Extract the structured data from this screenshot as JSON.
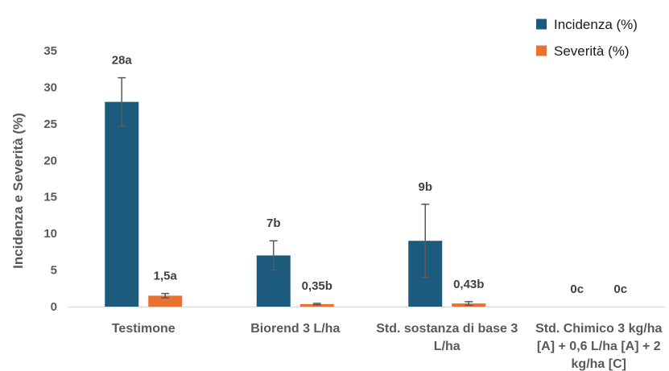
{
  "chart_data": {
    "type": "bar",
    "categories": [
      "Testimone",
      "Biorend 3 L/ha",
      "Std. sostanza di base 3 L/ha",
      "Std. Chimico 3 kg/ha [A] + 0,6 L/ha [A] + 2 kg/ha [C]"
    ],
    "series": [
      {
        "name": "Incidenza (%)",
        "color": "#1d5b7d",
        "values": [
          28,
          7,
          9,
          0
        ],
        "error": [
          3.3,
          2,
          5,
          0
        ],
        "labels": [
          "28a",
          "7b",
          "9b",
          "0c"
        ]
      },
      {
        "name": "Severità (%)",
        "color": "#e97132",
        "values": [
          1.5,
          0.35,
          0.43,
          0
        ],
        "error": [
          0.3,
          0.1,
          0.25,
          0
        ],
        "labels": [
          "1,5a",
          "0,35b",
          "0,43b",
          "0c"
        ]
      }
    ],
    "ylabel": "Incidenza e Severità (%)",
    "ylim": [
      0,
      35
    ],
    "yticks": [
      0,
      5,
      10,
      15,
      20,
      25,
      30,
      35
    ],
    "grid": false,
    "legend": "top-right"
  }
}
